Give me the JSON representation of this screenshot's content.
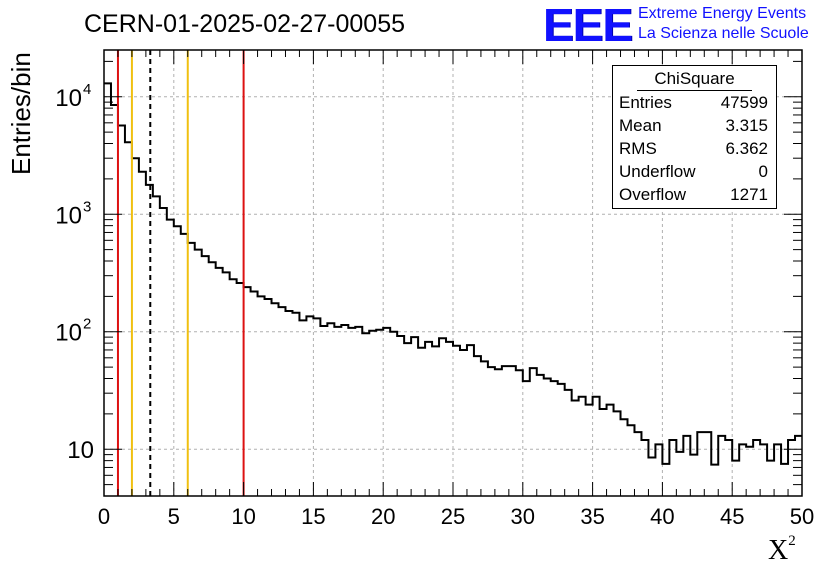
{
  "page": {
    "title": "CERN-01-2025-02-27-00055",
    "ylabel": "Entries/bin",
    "xlabel": "X",
    "xlabel_sup": "2"
  },
  "logo": {
    "mark": "EEE",
    "line1": "Extreme Energy Events",
    "line2": "La Scienza nelle Scuole",
    "color": "#1111ff"
  },
  "stats": {
    "title": "ChiSquare",
    "rows": [
      {
        "label": "Entries",
        "value": "47599"
      },
      {
        "label": "Mean",
        "value": "3.315"
      },
      {
        "label": "RMS",
        "value": "6.362"
      },
      {
        "label": "Underflow",
        "value": "0"
      },
      {
        "label": "Overflow",
        "value": "1271"
      }
    ]
  },
  "chart_data": {
    "type": "histogram",
    "xlim": [
      0,
      50
    ],
    "ylim": [
      4,
      25000
    ],
    "yscale": "log",
    "grid": true,
    "bin_width": 0.5,
    "x_ticks": [
      0,
      5,
      10,
      15,
      20,
      25,
      30,
      35,
      40,
      45,
      50
    ],
    "x_tick_labels": [
      "0",
      "5",
      "10",
      "15",
      "20",
      "25",
      "30",
      "35",
      "40",
      "45",
      "50"
    ],
    "y_ticks": [
      10,
      100,
      1000,
      10000
    ],
    "y_tick_labels": [
      {
        "base": "10",
        "exp": ""
      },
      {
        "base": "10",
        "exp": "2"
      },
      {
        "base": "10",
        "exp": "3"
      },
      {
        "base": "10",
        "exp": "4"
      }
    ],
    "values": [
      13000,
      8500,
      5700,
      4100,
      3000,
      2300,
      1780,
      1420,
      1130,
      900,
      790,
      680,
      570,
      500,
      440,
      390,
      350,
      320,
      280,
      260,
      240,
      220,
      200,
      190,
      175,
      162,
      150,
      145,
      125,
      135,
      130,
      112,
      118,
      110,
      114,
      108,
      110,
      97,
      102,
      104,
      108,
      100,
      92,
      80,
      90,
      73,
      82,
      75,
      88,
      82,
      76,
      70,
      77,
      62,
      56,
      50,
      48,
      51,
      51,
      47,
      38,
      49,
      43,
      40,
      38,
      36,
      32,
      26,
      28,
      24,
      28,
      22,
      24,
      21,
      18,
      16,
      14,
      12,
      8.5,
      11,
      7.5,
      12,
      9.5,
      13,
      9,
      14,
      14,
      7.4,
      13,
      12,
      8,
      11,
      10.5,
      12,
      11,
      8,
      11,
      7.5,
      12,
      13
    ],
    "vlines": [
      {
        "x": 1,
        "color": "#dd1111",
        "style": "solid"
      },
      {
        "x": 2,
        "color": "#f0c010",
        "style": "solid"
      },
      {
        "x": 3.315,
        "color": "#000000",
        "style": "dashed"
      },
      {
        "x": 6,
        "color": "#f0c010",
        "style": "solid"
      },
      {
        "x": 10,
        "color": "#dd1111",
        "style": "solid"
      }
    ]
  }
}
